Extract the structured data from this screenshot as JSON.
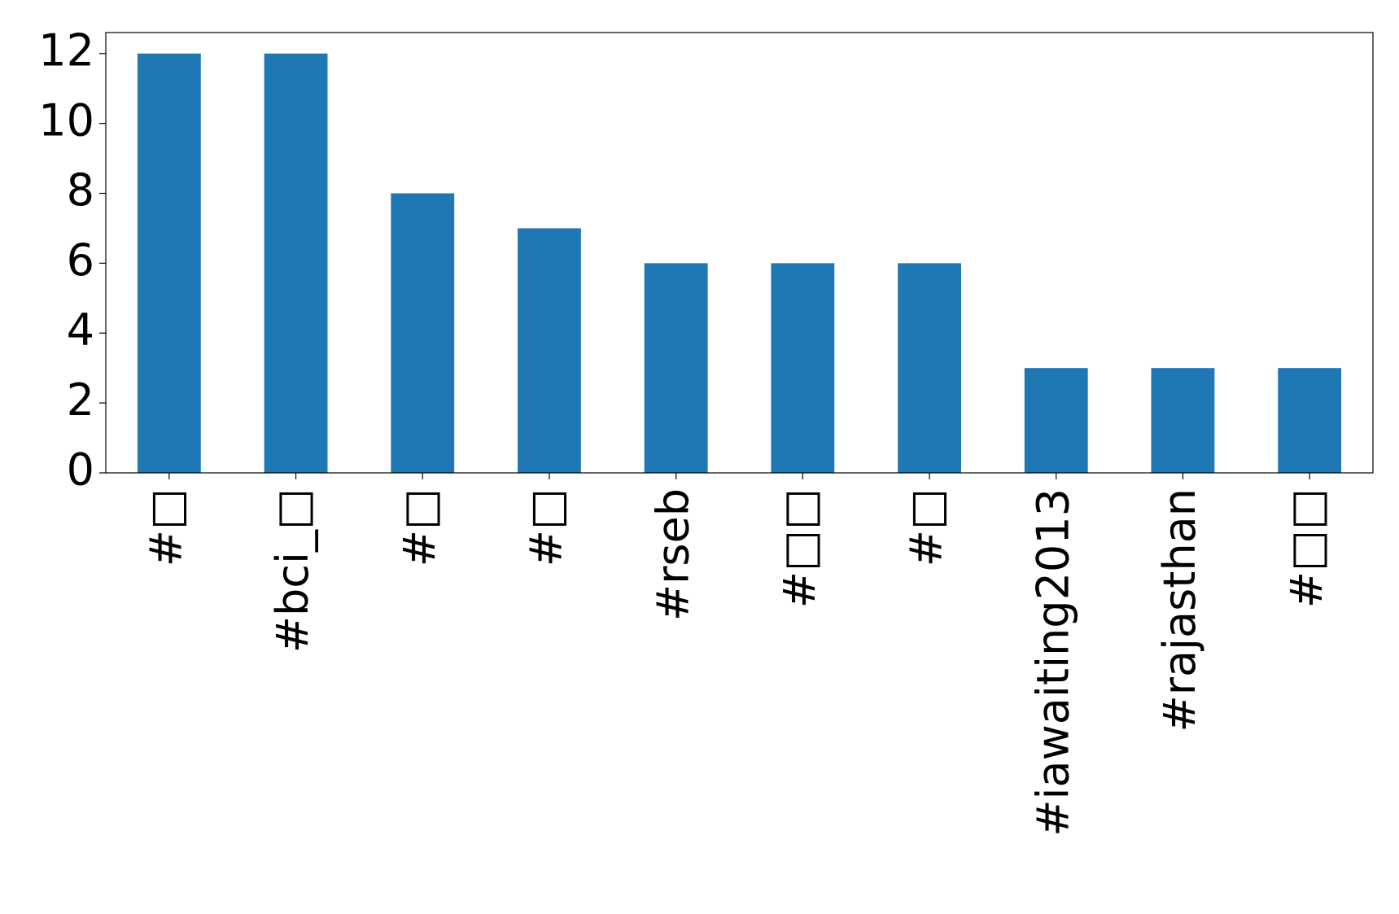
{
  "chart_data": {
    "type": "bar",
    "categories": [
      "#□",
      "#bci_□",
      "#□",
      "#□",
      "#rseb",
      "#□□",
      "#□",
      "#iawaiting2013",
      "#rajasthan",
      "#□□"
    ],
    "values": [
      12,
      12,
      8,
      7,
      6,
      6,
      6,
      3,
      3,
      3
    ],
    "color": "#1f77b4",
    "ylim": [
      0,
      12.6
    ],
    "yticks": [
      0,
      2,
      4,
      6,
      8,
      10,
      12
    ],
    "grid": false
  }
}
